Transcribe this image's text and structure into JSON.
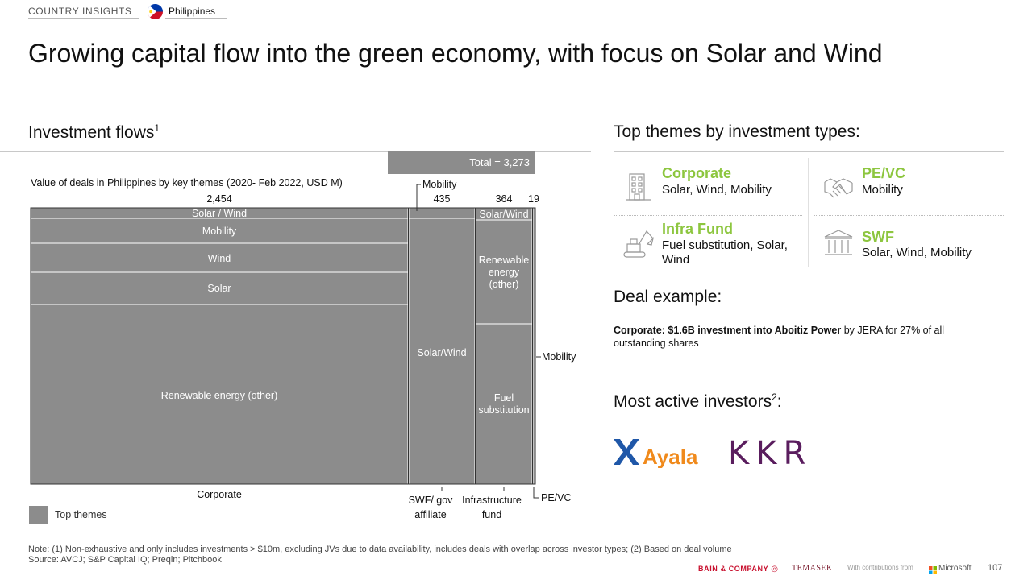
{
  "header": {
    "section_tag": "COUNTRY INSIGHTS",
    "country": "Philippines"
  },
  "page_title": "Growing capital flow into the green economy, with focus on Solar and Wind",
  "investment_flows": {
    "heading": "Investment flows",
    "heading_sup": "1",
    "total_label": "Total = 3,273",
    "subtitle": "Value of deals in Philippines by key themes (2020- Feb 2022, USD M)",
    "legend_label": "Top themes"
  },
  "chart_data": {
    "type": "mekko",
    "title": "Value of deals in Philippines by key themes (2020- Feb 2022, USD M)",
    "total": 3273,
    "total_label": "Total = 3,273",
    "columns": [
      {
        "name": "Corporate",
        "value": 2454,
        "value_label": "2,454",
        "segments": [
          {
            "label": "Solar / Wind",
            "share": 0.042
          },
          {
            "label": "Mobility",
            "share": 0.102
          },
          {
            "label": "Wind",
            "share": 0.118
          },
          {
            "label": "Solar",
            "share": 0.12
          },
          {
            "label": "Renewable energy (other)",
            "share": 0.618
          }
        ]
      },
      {
        "name": "SWF/ gov affiliate",
        "value": 435,
        "value_label": "435",
        "segments": [
          {
            "label": "Mobility",
            "share": 0.03
          },
          {
            "label": "Solar/Wind",
            "share": 0.97
          }
        ]
      },
      {
        "name": "Infrastructure fund",
        "value": 364,
        "value_label": "364",
        "segments": [
          {
            "label": "Solar/Wind",
            "share": 0.05
          },
          {
            "label": "Renewable energy (other)",
            "share": 0.45
          },
          {
            "label": "Fuel substitution",
            "share": 0.5
          }
        ]
      },
      {
        "name": "PE/VC",
        "value": 19,
        "value_label": "19",
        "segments": [
          {
            "label": "Mobility",
            "share": 1.0
          }
        ]
      }
    ],
    "color": "#8c8c8c"
  },
  "chart_labels": {
    "col1_value": "2,454",
    "col2_value": "435",
    "col3_value": "364",
    "col4_value": "19",
    "col1_name": "Corporate",
    "col2_name_l1": "SWF/ gov",
    "col2_name_l2": "affiliate",
    "col3_name_l1": "Infrastructure",
    "col3_name_l2": "fund",
    "col4_name": "PE/VC",
    "c1_seg1": "Solar / Wind",
    "c1_seg2": "Mobility",
    "c1_seg3": "Wind",
    "c1_seg4": "Solar",
    "c1_seg5": "Renewable energy (other)",
    "c2_top_callout": "Mobility",
    "c2_seg": "Solar/Wind",
    "c3_seg1": "Solar/Wind",
    "c3_seg2_l1": "Renewable",
    "c3_seg2_l2": "energy",
    "c3_seg2_l3": "(other)",
    "c3_seg3_l1": "Fuel",
    "c3_seg3_l2": "substitution",
    "c4_callout": "Mobility"
  },
  "themes": {
    "heading": "Top themes by investment types:",
    "items": [
      {
        "title": "Corporate",
        "desc": "Solar, Wind, Mobility",
        "icon": "building-icon"
      },
      {
        "title": "PE/VC",
        "desc": "Mobility",
        "icon": "handshake-icon"
      },
      {
        "title": "Infra Fund",
        "desc": "Fuel substitution, Solar, Wind",
        "icon": "excavator-icon"
      },
      {
        "title": "SWF",
        "desc": "Solar, Wind, Mobility",
        "icon": "bank-icon"
      }
    ]
  },
  "deal": {
    "heading": "Deal example:",
    "bold": "Corporate: $1.6B investment into Aboitiz Power",
    "rest": " by JERA for 27% of all outstanding shares"
  },
  "investors": {
    "heading": "Most active investors",
    "heading_sup": "2",
    "heading_suffix": ":",
    "logos": [
      "Ayala",
      "KKR"
    ]
  },
  "footer": {
    "note": "Note: (1) Non-exhaustive and only includes investments > $10m, excluding JVs due to data availability, includes deals with overlap across investor types; (2) Based on deal volume",
    "source": "Source: AVCJ; S&P Capital IQ; Preqin; Pitchbook",
    "bain": "BAIN & COMPANY",
    "temasek": "TEMASEK",
    "contrib": "With contributions from",
    "microsoft": "Microsoft",
    "page_number": "107"
  },
  "colors": {
    "accent_green": "#8dc63f",
    "bar_grey": "#8c8c8c",
    "bain_red": "#c8102e",
    "kkr_purple": "#5a1d5e",
    "ayala_blue": "#1f57a8",
    "ayala_orange": "#f08a1c"
  }
}
